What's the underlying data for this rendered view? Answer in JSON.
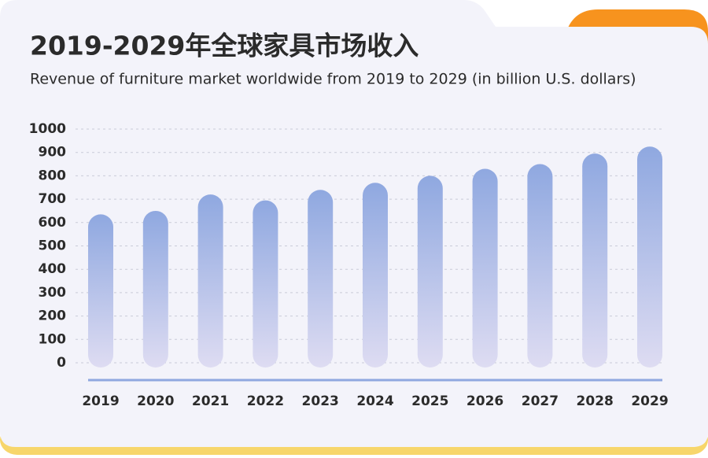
{
  "chart_data": {
    "type": "bar",
    "title": "2019-2029年全球家具市场收入",
    "subtitle": "Revenue of furniture market worldwide from 2019 to 2029 (in billion U.S. dollars)",
    "categories": [
      "2019",
      "2020",
      "2021",
      "2022",
      "2023",
      "2024",
      "2025",
      "2026",
      "2027",
      "2028",
      "2029"
    ],
    "values": [
      635,
      650,
      720,
      695,
      740,
      770,
      800,
      830,
      850,
      895,
      925
    ],
    "color": "#8fa8e0",
    "ylim": [
      0,
      1000
    ],
    "yticks": [
      0,
      100,
      200,
      300,
      400,
      500,
      600,
      700,
      800,
      900,
      1000
    ],
    "grid": true
  }
}
